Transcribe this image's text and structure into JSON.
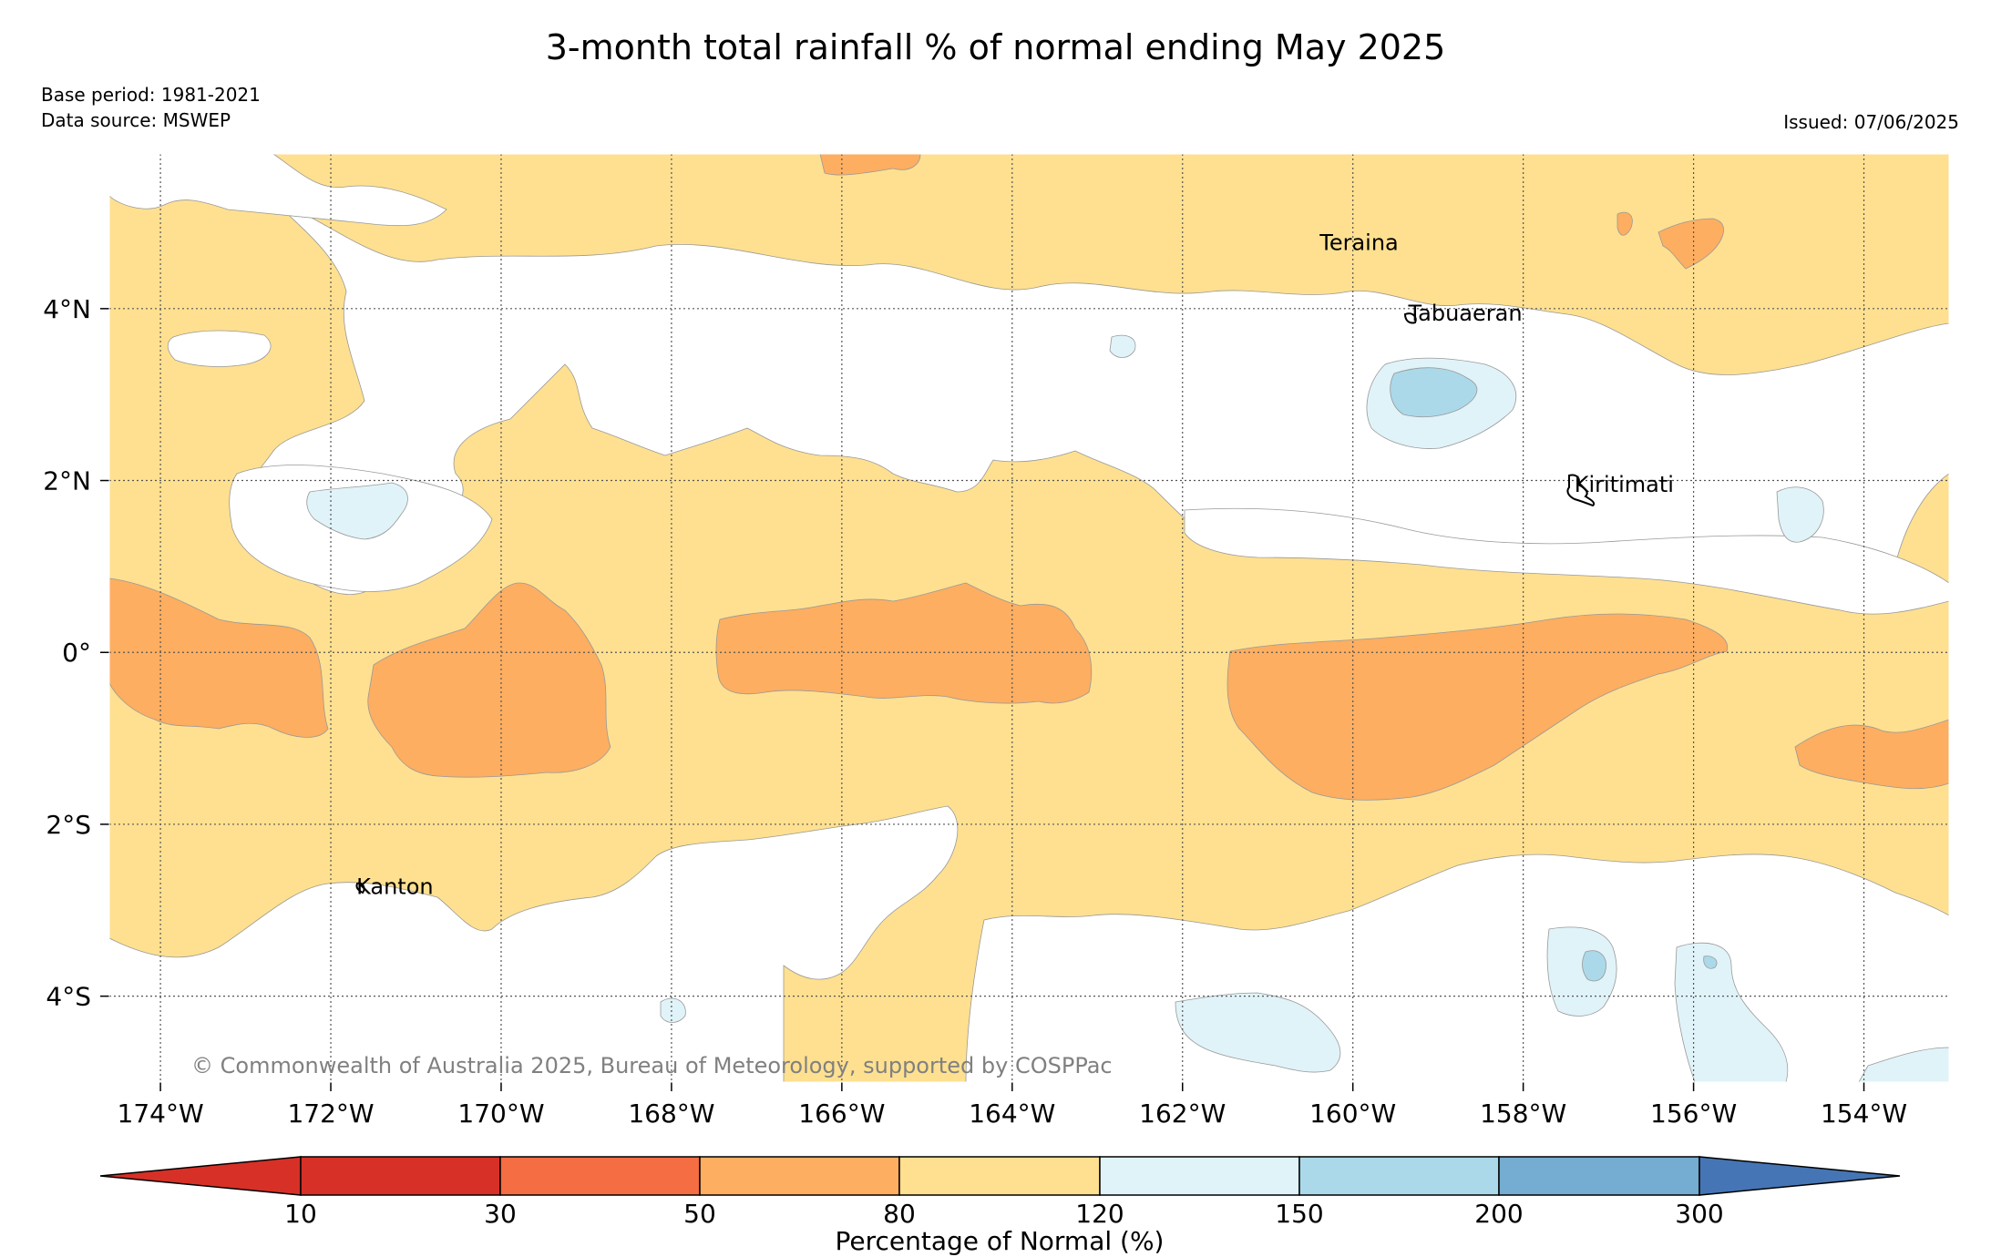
{
  "title": "3-month total rainfall % of normal ending May 2025",
  "base_period": "Base period: 1981-2021",
  "data_source": "Data source: MSWEP",
  "issued": "Issued: 07/06/2025",
  "copyright": "© Commonwealth of Australia 2025, Bureau of Meteorology, supported by COSPPac",
  "colors": {
    "c10": "#d73027",
    "c30": "#f46d43",
    "c50": "#fdae61",
    "c80": "#fee090",
    "c120": "#ffffff",
    "c150": "#e0f3f8",
    "c200": "#abd9e9",
    "c300": "#74add1",
    "cmax": "#4575b4"
  },
  "map": {
    "lon_range": [
      -174.6,
      -153.0
    ],
    "lat_range": [
      -5.0,
      5.8
    ],
    "lon_ticks": [
      {
        "value": -174,
        "label": "174°W"
      },
      {
        "value": -172,
        "label": "172°W"
      },
      {
        "value": -170,
        "label": "170°W"
      },
      {
        "value": -168,
        "label": "168°W"
      },
      {
        "value": -166,
        "label": "166°W"
      },
      {
        "value": -164,
        "label": "164°W"
      },
      {
        "value": -162,
        "label": "162°W"
      },
      {
        "value": -160,
        "label": "160°W"
      },
      {
        "value": -158,
        "label": "158°W"
      },
      {
        "value": -156,
        "label": "156°W"
      },
      {
        "value": -154,
        "label": "154°W"
      }
    ],
    "lat_ticks": [
      {
        "value": 4,
        "label": "4°N"
      },
      {
        "value": 2,
        "label": "2°N"
      },
      {
        "value": 0,
        "label": "0°"
      },
      {
        "value": -2,
        "label": "2°S"
      },
      {
        "value": -4,
        "label": "4°S"
      }
    ],
    "places": [
      {
        "name": "Teraina",
        "lon": -160.39,
        "lat": 4.68
      },
      {
        "name": "Tabuaeran",
        "lon": -159.35,
        "lat": 3.86
      },
      {
        "name": "Kiritimati",
        "lon": -157.4,
        "lat": 1.87
      },
      {
        "name": "Kanton",
        "lon": -171.7,
        "lat": -2.81
      }
    ]
  },
  "colorbar": {
    "label": "Percentage of Normal (%)",
    "ticks": [
      "10",
      "30",
      "50",
      "80",
      "120",
      "150",
      "200",
      "300"
    ]
  }
}
